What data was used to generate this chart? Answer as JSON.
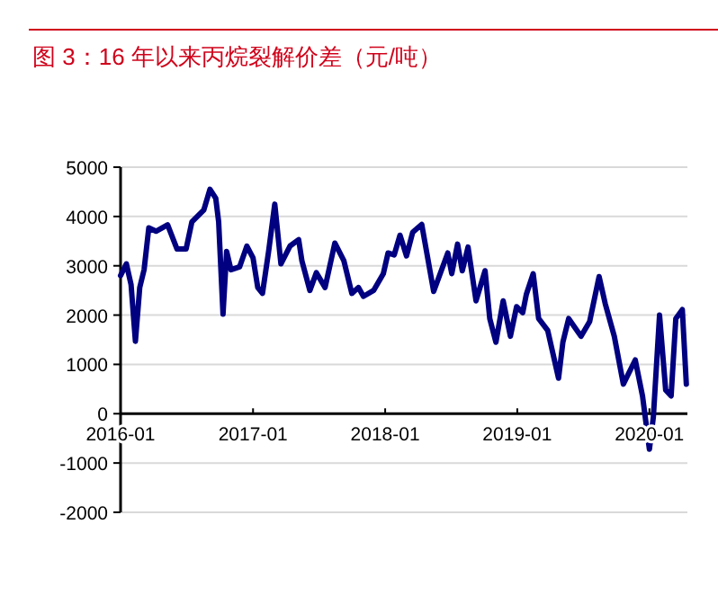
{
  "chart_data": {
    "type": "line",
    "title": "图 3：16 年以来丙烷裂解价差（元/吨）",
    "x": [
      "2016-01-01",
      "2016-01-17",
      "2016-01-30",
      "2016-02-11",
      "2016-02-23",
      "2016-03-06",
      "2016-03-19",
      "2016-04-08",
      "2016-05-10",
      "2016-06-05",
      "2016-06-30",
      "2016-07-16",
      "2016-08-18",
      "2016-09-04",
      "2016-09-20",
      "2016-09-28",
      "2016-10-10",
      "2016-10-20",
      "2016-11-01",
      "2016-11-25",
      "2016-12-15",
      "2017-01-01",
      "2017-01-14",
      "2017-01-27",
      "2017-02-13",
      "2017-03-02",
      "2017-03-19",
      "2017-04-13",
      "2017-05-07",
      "2017-05-16",
      "2017-06-07",
      "2017-06-25",
      "2017-07-19",
      "2017-08-15",
      "2017-09-09",
      "2017-10-01",
      "2017-10-19",
      "2017-11-02",
      "2017-11-30",
      "2017-12-27",
      "2018-01-09",
      "2018-01-26",
      "2018-02-11",
      "2018-03-01",
      "2018-03-18",
      "2018-04-12",
      "2018-05-15",
      "2018-06-23",
      "2018-07-04",
      "2018-07-20",
      "2018-08-02",
      "2018-08-18",
      "2018-09-09",
      "2018-10-04",
      "2018-10-17",
      "2018-11-03",
      "2018-11-23",
      "2018-12-13",
      "2018-12-30",
      "2019-01-16",
      "2019-01-26",
      "2019-02-14",
      "2019-03-01",
      "2019-03-26",
      "2019-04-25",
      "2019-05-07",
      "2019-05-23",
      "2019-06-26",
      "2019-07-20",
      "2019-08-15",
      "2019-09-01",
      "2019-09-26",
      "2019-10-21",
      "2019-11-23",
      "2019-12-13",
      "2020-01-01",
      "2020-01-12",
      "2020-01-29",
      "2020-02-15",
      "2020-03-01",
      "2020-03-14",
      "2020-04-01",
      "2020-04-12"
    ],
    "series": [
      {
        "color": "#000080",
        "values": [
          2800,
          3040,
          2620,
          1470,
          2560,
          2920,
          3770,
          3700,
          3830,
          3340,
          3340,
          3890,
          4130,
          4550,
          4370,
          3890,
          2020,
          3290,
          2920,
          2980,
          3400,
          3160,
          2560,
          2440,
          3290,
          4250,
          3040,
          3400,
          3530,
          3100,
          2500,
          2860,
          2560,
          3460,
          3100,
          2440,
          2560,
          2380,
          2500,
          2840,
          3260,
          3220,
          3620,
          3200,
          3680,
          3840,
          2480,
          3260,
          2840,
          3440,
          2900,
          3380,
          2290,
          2900,
          1930,
          1450,
          2290,
          1570,
          2170,
          2050,
          2420,
          2840,
          1930,
          1690,
          720,
          1450,
          1930,
          1570,
          1870,
          2780,
          2230,
          1570,
          600,
          1090,
          360,
          -720,
          -60,
          2000,
          480,
          360,
          1930,
          2110,
          600
        ]
      }
    ],
    "xlim": [
      "2016-01-01",
      "2020-04-15"
    ],
    "xticks": [
      {
        "value": "2016-01",
        "label": "2016-01"
      },
      {
        "value": "2017-01",
        "label": "2017-01"
      },
      {
        "value": "2018-01",
        "label": "2018-01"
      },
      {
        "value": "2019-01",
        "label": "2019-01"
      },
      {
        "value": "2020-01",
        "label": "2020-01"
      }
    ],
    "ylim": [
      -2000,
      5000
    ],
    "yticks": [
      -2000,
      -1000,
      0,
      1000,
      2000,
      3000,
      4000,
      5000
    ],
    "grid": "y",
    "marker": "none",
    "line_style": "solid"
  }
}
